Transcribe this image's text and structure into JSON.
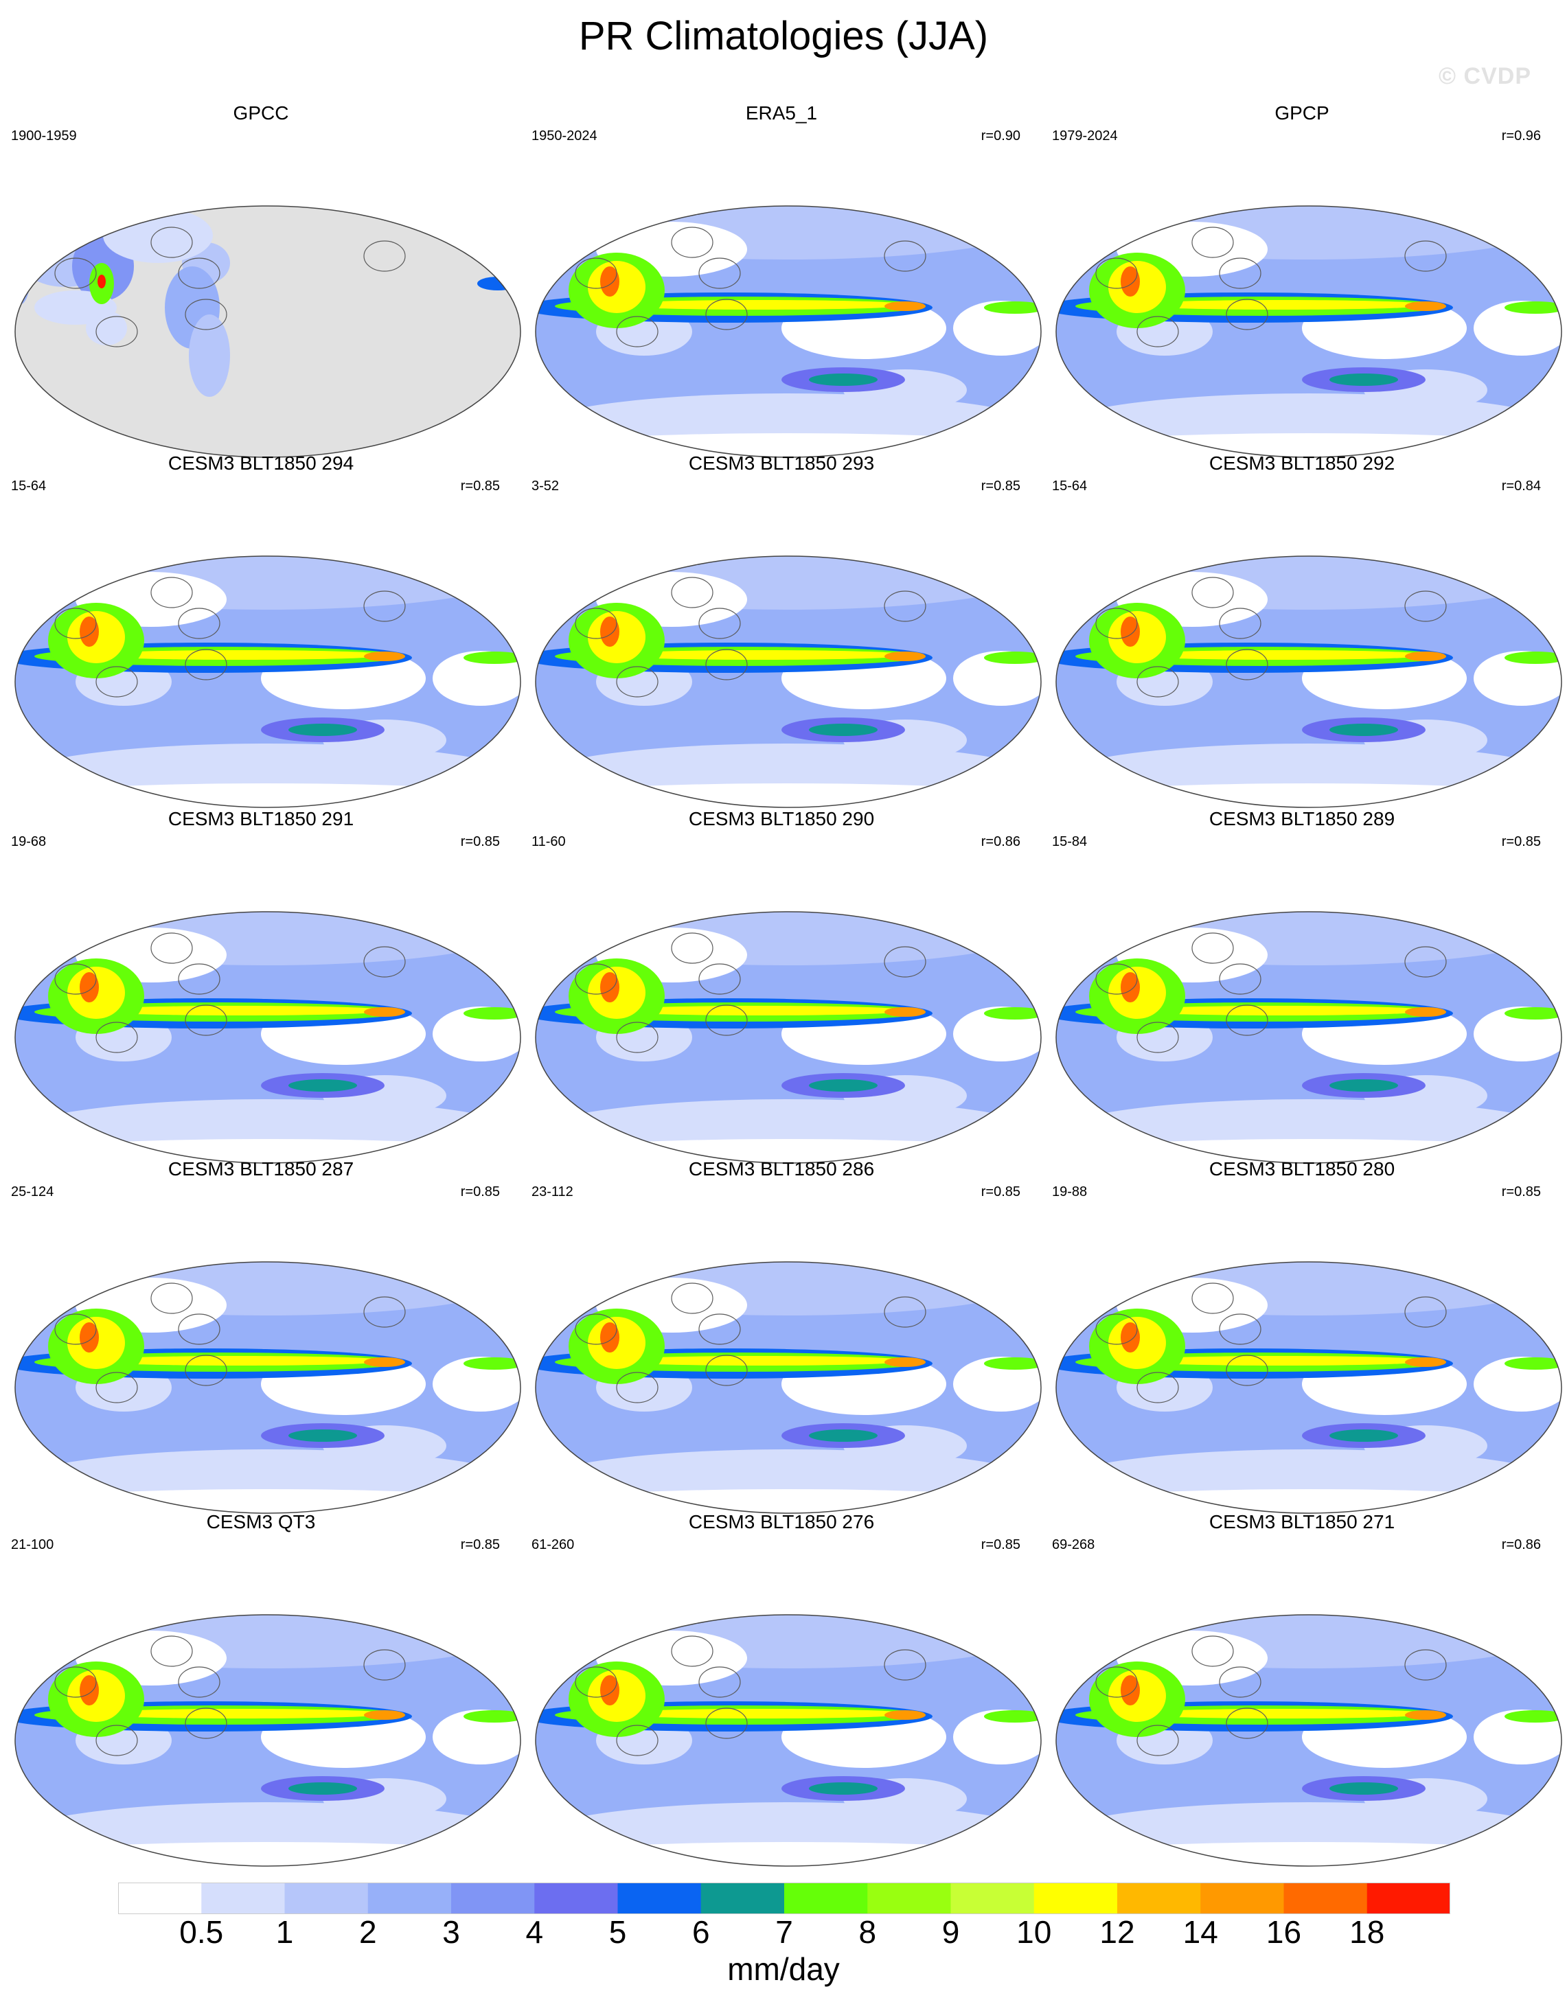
{
  "title": "PR Climatologies (JJA)",
  "watermark": "© CVDP",
  "colors": {
    "land_missing": "#e1e1e1",
    "coast": "#5a5a5a",
    "outline": "#444444",
    "palette": [
      "#ffffff",
      "#d5defc",
      "#b6c6fa",
      "#97b0f9",
      "#8095f5",
      "#6c6ef0",
      "#0a64f2",
      "#0d9991",
      "#65ff08",
      "#99ff10",
      "#c8ff35",
      "#ffff00",
      "#ffb800",
      "#ff9900",
      "#ff6a00",
      "#ff1a00"
    ]
  },
  "panels": [
    {
      "id": "gpcc",
      "title": "GPCC",
      "years": "1900-1959",
      "corr": "",
      "land_only": true
    },
    {
      "id": "era5",
      "title": "ERA5_1",
      "years": "1950-2024",
      "corr": "r=0.90",
      "land_only": false
    },
    {
      "id": "gpcp",
      "title": "GPCP",
      "years": "1979-2024",
      "corr": "r=0.96",
      "land_only": false
    },
    {
      "id": "blt294",
      "title": "CESM3 BLT1850 294",
      "years": "15-64",
      "corr": "r=0.85",
      "land_only": false
    },
    {
      "id": "blt293",
      "title": "CESM3 BLT1850 293",
      "years": "3-52",
      "corr": "r=0.85",
      "land_only": false
    },
    {
      "id": "blt292",
      "title": "CESM3 BLT1850 292",
      "years": "15-64",
      "corr": "r=0.84",
      "land_only": false
    },
    {
      "id": "blt291",
      "title": "CESM3 BLT1850 291",
      "years": "19-68",
      "corr": "r=0.85",
      "land_only": false
    },
    {
      "id": "blt290",
      "title": "CESM3 BLT1850 290",
      "years": "11-60",
      "corr": "r=0.86",
      "land_only": false
    },
    {
      "id": "blt289",
      "title": "CESM3 BLT1850 289",
      "years": "15-84",
      "corr": "r=0.85",
      "land_only": false
    },
    {
      "id": "blt287",
      "title": "CESM3 BLT1850 287",
      "years": "25-124",
      "corr": "r=0.85",
      "land_only": false
    },
    {
      "id": "blt286",
      "title": "CESM3 BLT1850 286",
      "years": "23-112",
      "corr": "r=0.85",
      "land_only": false
    },
    {
      "id": "blt280",
      "title": "CESM3 BLT1850 280",
      "years": "19-88",
      "corr": "r=0.85",
      "land_only": false
    },
    {
      "id": "qt3",
      "title": "CESM3 QT3",
      "years": "21-100",
      "corr": "r=0.85",
      "land_only": false
    },
    {
      "id": "blt276",
      "title": "CESM3 BLT1850 276",
      "years": "61-260",
      "corr": "r=0.85",
      "land_only": false
    },
    {
      "id": "blt271",
      "title": "CESM3 BLT1850 271",
      "years": "69-268",
      "corr": "r=0.86",
      "land_only": false
    }
  ],
  "colorbar": {
    "levels": [
      "0.5",
      "1",
      "2",
      "3",
      "4",
      "5",
      "6",
      "7",
      "8",
      "9",
      "10",
      "12",
      "14",
      "16",
      "18"
    ],
    "unit": "mm/day"
  }
}
